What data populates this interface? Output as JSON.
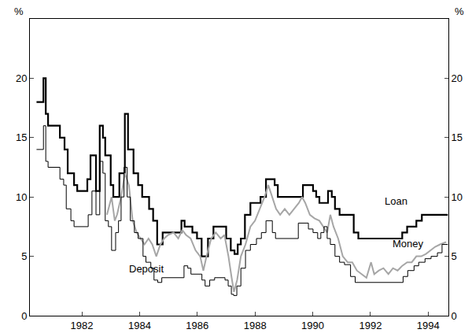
{
  "chart_data": {
    "type": "line",
    "ylabel": "%",
    "y2label": "%",
    "xlim": [
      1980.2,
      1994.7
    ],
    "xticks": [
      1982,
      1984,
      1986,
      1988,
      1990,
      1992,
      1994
    ],
    "ylim": [
      0,
      25
    ],
    "yticks": [
      0,
      5,
      10,
      15,
      20
    ],
    "y2lim": [
      0,
      25
    ],
    "y2ticks": [
      0,
      5,
      10,
      15,
      20
    ],
    "grid": false,
    "series": [
      {
        "name": "Loan",
        "color": "#000000",
        "line_style": "step",
        "x": [
          1980.43,
          1980.67,
          1980.75,
          1980.83,
          1981.24,
          1981.4,
          1981.51,
          1981.73,
          1981.84,
          1982.19,
          1982.3,
          1982.49,
          1982.62,
          1982.73,
          1982.81,
          1983.0,
          1983.09,
          1983.3,
          1983.49,
          1983.6,
          1983.79,
          1983.95,
          1984.09,
          1984.33,
          1984.47,
          1984.61,
          1984.8,
          1985.45,
          1985.56,
          1985.83,
          1985.99,
          1986.15,
          1986.37,
          1986.56,
          1987.0,
          1987.16,
          1987.29,
          1987.4,
          1987.51,
          1987.65,
          1987.84,
          1988.19,
          1988.38,
          1988.68,
          1988.79,
          1989.66,
          1990.01,
          1990.12,
          1990.23,
          1990.53,
          1990.66,
          1990.77,
          1990.93,
          1991.42,
          1991.58,
          1993.1,
          1993.27,
          1993.59,
          1993.78,
          1994.68
        ],
        "values": [
          18,
          20,
          17,
          16,
          15,
          14,
          12,
          11,
          10.5,
          11.5,
          13.5,
          10.5,
          16,
          15,
          13.5,
          11,
          10,
          12,
          17,
          14,
          12,
          11,
          10,
          9,
          8,
          6,
          7,
          8,
          7.5,
          7,
          6.5,
          5,
          6.5,
          7.5,
          6.5,
          5.5,
          5.2,
          6,
          6.5,
          8.5,
          9.5,
          10,
          11.5,
          11,
          10,
          11,
          10.5,
          10,
          9.5,
          10.5,
          10,
          9,
          8.5,
          7,
          6.5,
          7,
          7.5,
          8,
          8.5,
          8.5
        ]
      },
      {
        "name": "Money",
        "color": "#a6a6a6",
        "line_style": "solid",
        "x": [
          1982.87,
          1983.03,
          1983.14,
          1983.22,
          1983.36,
          1983.49,
          1983.63,
          1983.76,
          1983.9,
          1984.04,
          1984.17,
          1984.31,
          1984.44,
          1984.58,
          1984.72,
          1984.85,
          1984.99,
          1985.18,
          1985.34,
          1985.48,
          1985.61,
          1985.77,
          1985.94,
          1986.1,
          1986.21,
          1986.32,
          1986.48,
          1986.64,
          1986.81,
          1986.94,
          1987.08,
          1987.19,
          1987.27,
          1987.38,
          1987.51,
          1987.67,
          1987.84,
          1988.0,
          1988.16,
          1988.33,
          1988.46,
          1988.6,
          1988.73,
          1988.87,
          1989.03,
          1989.19,
          1989.36,
          1989.52,
          1989.63,
          1989.74,
          1989.9,
          1990.06,
          1990.23,
          1990.36,
          1990.5,
          1990.61,
          1990.72,
          1990.88,
          1991.04,
          1991.21,
          1991.37,
          1991.53,
          1991.69,
          1991.86,
          1992.02,
          1992.13,
          1992.29,
          1992.45,
          1992.62,
          1992.78,
          1992.94,
          1993.1,
          1993.27,
          1993.43,
          1993.59,
          1993.76,
          1993.92,
          1994.08,
          1994.24,
          1994.41,
          1994.62
        ],
        "values": [
          8.5,
          10,
          8,
          8.5,
          10,
          12,
          11,
          8,
          7,
          6.5,
          6,
          6.5,
          6,
          5,
          6,
          6.5,
          6.8,
          7,
          6.5,
          7.2,
          6.8,
          6.5,
          5.5,
          5,
          3.8,
          5,
          6.5,
          7,
          6.5,
          6.8,
          5,
          3.2,
          2,
          3,
          5,
          6,
          7.5,
          8,
          9,
          10,
          11,
          10,
          9,
          8.5,
          9,
          8.5,
          9,
          9.5,
          10,
          9.5,
          8.5,
          8.2,
          8,
          7.5,
          7,
          8.5,
          7.5,
          6.5,
          5,
          4.5,
          4.5,
          3.8,
          3.5,
          3.2,
          4.5,
          3.5,
          3.8,
          4,
          3.5,
          4,
          3.8,
          4.2,
          4.5,
          4.5,
          5,
          5,
          5.2,
          5.5,
          5.8,
          6,
          6.2
        ]
      },
      {
        "name": "Deposit",
        "color": "#000000",
        "line_style": "step",
        "x": [
          1980.43,
          1980.67,
          1980.75,
          1980.83,
          1981.24,
          1981.37,
          1981.46,
          1981.62,
          1981.73,
          1982.22,
          1982.35,
          1982.49,
          1982.62,
          1982.73,
          1982.81,
          1982.92,
          1983.03,
          1983.17,
          1983.27,
          1983.36,
          1983.46,
          1983.57,
          1983.68,
          1983.82,
          1983.95,
          1984.12,
          1984.22,
          1984.39,
          1984.5,
          1984.63,
          1984.77,
          1985.54,
          1985.67,
          1985.78,
          1986.16,
          1986.27,
          1986.43,
          1986.6,
          1986.96,
          1987.07,
          1987.18,
          1987.26,
          1987.37,
          1987.51,
          1987.67,
          1987.84,
          1988.05,
          1988.22,
          1988.38,
          1988.6,
          1988.71,
          1989.5,
          1989.85,
          1990.01,
          1990.17,
          1990.28,
          1990.39,
          1990.5,
          1990.61,
          1990.77,
          1990.93,
          1991.1,
          1991.31,
          1991.47,
          1993.13,
          1993.29,
          1993.51,
          1993.67,
          1993.89,
          1994.1,
          1994.32,
          1994.48,
          1994.68
        ],
        "values": [
          14,
          16,
          13,
          12.5,
          11.5,
          11,
          9,
          8,
          7.5,
          8.5,
          10.5,
          8.5,
          13,
          12,
          8,
          7.5,
          5.5,
          7,
          8,
          10,
          12.5,
          10,
          8,
          7,
          6.5,
          5,
          4.5,
          4,
          3,
          2.8,
          3.2,
          4.2,
          4,
          3.5,
          3,
          2.5,
          3,
          3.2,
          3,
          2.5,
          1.8,
          1.7,
          2.5,
          4,
          5.5,
          6,
          6.5,
          7,
          8,
          7,
          6.5,
          7.8,
          7.3,
          7,
          6.5,
          7,
          7.5,
          6.5,
          6,
          5,
          4.5,
          4.3,
          3.3,
          2.8,
          3.3,
          3.8,
          4.2,
          4.5,
          4.8,
          5,
          5.3,
          6,
          6
        ]
      }
    ],
    "annotations": [
      {
        "text": "Loan",
        "x": 1992.45,
        "y": 9.0
      },
      {
        "text": "Money",
        "x": 1992.7,
        "y": 5.45
      },
      {
        "text": "Deposit",
        "x": 1983.57,
        "y": 3.3
      }
    ]
  }
}
